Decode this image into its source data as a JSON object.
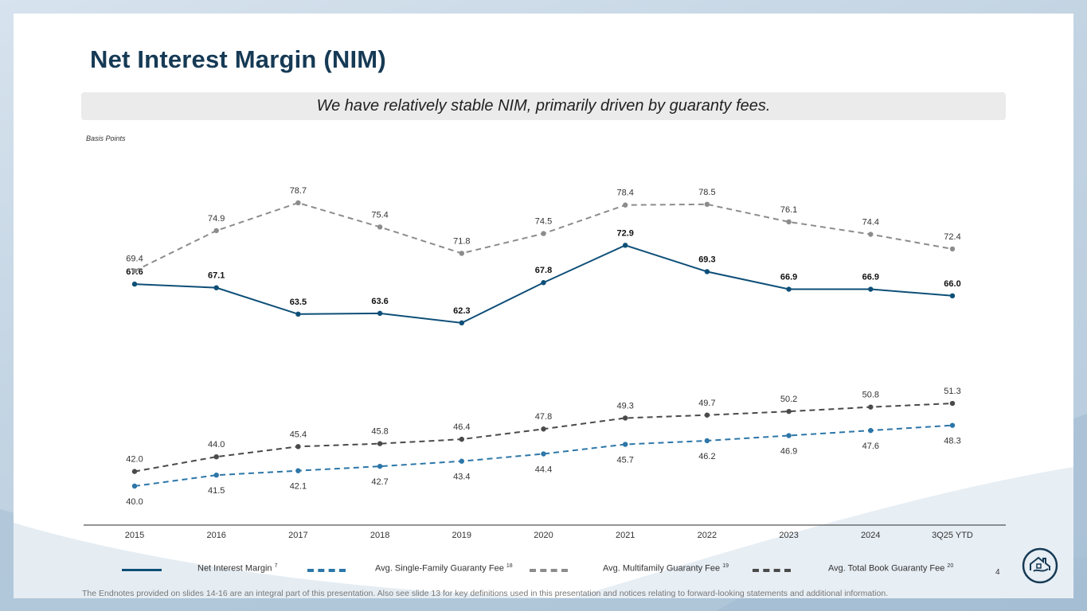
{
  "title": "Net Interest Margin (NIM)",
  "banner": "We have relatively stable NIM, primarily driven by guaranty fees.",
  "units_label": "Basis Points",
  "page_number": "4",
  "footnote": "The Endnotes provided on slides 14-16 are an integral part of this presentation. Also see slide 13 for key definitions used in this presentation and notices relating to forward-looking statements and additional information.",
  "legend": [
    {
      "label": "Net Interest Margin",
      "sup": "7"
    },
    {
      "label": "Avg. Single-Family Guaranty Fee",
      "sup": "18"
    },
    {
      "label": "Avg. Multifamily Guaranty Fee",
      "sup": "19"
    },
    {
      "label": "Avg. Total Book Guaranty Fee",
      "sup": "20"
    }
  ],
  "colors": {
    "title": "#163a55",
    "nim": "#0e4f78",
    "single_family": "#2c76a8",
    "multifamily": "#8c8c8c",
    "total_book": "#4a4a4a",
    "axis": "#555555"
  },
  "chart_data": {
    "type": "line",
    "title": "",
    "xlabel": "",
    "ylabel": "Basis Points",
    "ylim": [
      35,
      85
    ],
    "categories": [
      "2015",
      "2016",
      "2017",
      "2018",
      "2019",
      "2020",
      "2021",
      "2022",
      "2023",
      "2024",
      "3Q25 YTD"
    ],
    "series": [
      {
        "name": "Net Interest Margin",
        "key": "nim",
        "style": "solid",
        "bold_labels": true,
        "label_pos": "above",
        "values": [
          67.6,
          67.1,
          63.5,
          63.6,
          62.3,
          67.8,
          72.9,
          69.3,
          66.9,
          66.9,
          66.0
        ]
      },
      {
        "name": "Avg. Single-Family Guaranty Fee",
        "key": "single_family",
        "style": "dashed",
        "bold_labels": false,
        "label_pos": "below",
        "values": [
          40.0,
          41.5,
          42.1,
          42.7,
          43.4,
          44.4,
          45.7,
          46.2,
          46.9,
          47.6,
          48.3
        ]
      },
      {
        "name": "Avg. Multifamily Guaranty Fee",
        "key": "multifamily",
        "style": "dashed",
        "bold_labels": false,
        "label_pos": "above",
        "values": [
          69.4,
          74.9,
          78.7,
          75.4,
          71.8,
          74.5,
          78.4,
          78.5,
          76.1,
          74.4,
          72.4
        ]
      },
      {
        "name": "Avg. Total Book Guaranty Fee",
        "key": "total_book",
        "style": "dashed",
        "bold_labels": false,
        "label_pos": "above",
        "values": [
          42.0,
          44.0,
          45.4,
          45.8,
          46.4,
          47.8,
          49.3,
          49.7,
          50.2,
          50.8,
          51.3
        ]
      }
    ]
  }
}
